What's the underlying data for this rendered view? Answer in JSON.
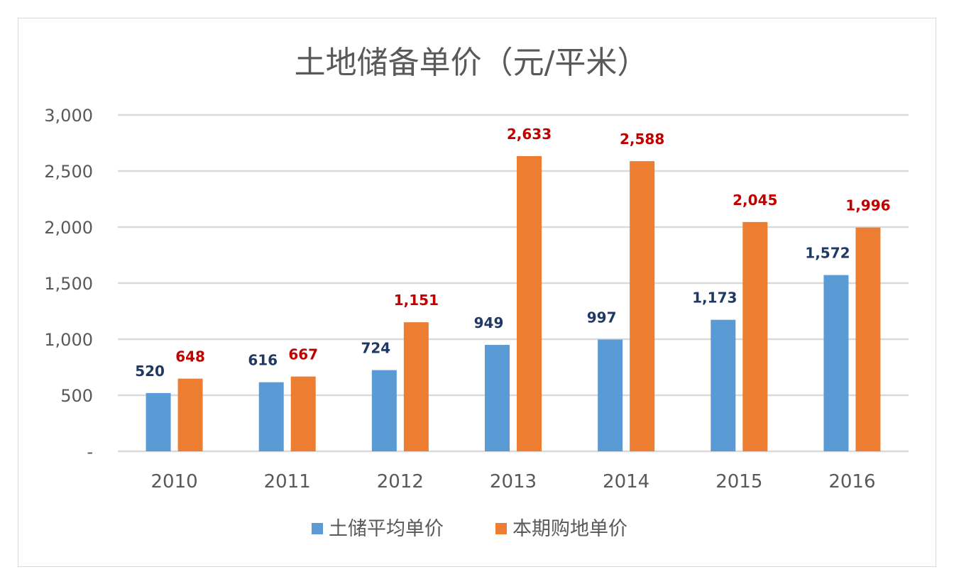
{
  "chart_data": {
    "type": "bar",
    "title": "土地储备单价（元/平米）",
    "categories": [
      "2010",
      "2011",
      "2012",
      "2013",
      "2014",
      "2015",
      "2016"
    ],
    "series": [
      {
        "name": "土储平均单价",
        "values": [
          520,
          616,
          724,
          949,
          997,
          1173,
          1572
        ],
        "color": "#5b9bd5",
        "label_color": "#1f3864",
        "labels": [
          "520",
          "616",
          "724",
          "949",
          "997",
          "1,173",
          "1,572"
        ]
      },
      {
        "name": "本期购地单价",
        "values": [
          648,
          667,
          1151,
          2633,
          2588,
          2045,
          1996
        ],
        "color": "#ed7d31",
        "label_color": "#c00000",
        "labels": [
          "648",
          "667",
          "1,151",
          "2,633",
          "2,588",
          "2,045",
          "1,996"
        ]
      }
    ],
    "ylim": [
      0,
      3000
    ],
    "yticks": [
      0,
      500,
      1000,
      1500,
      2000,
      2500,
      3000
    ],
    "ytick_labels": [
      "-",
      "500",
      "1,000",
      "1,500",
      "2,000",
      "2,500",
      "3,000"
    ],
    "xlabel": "",
    "ylabel": "",
    "grid": true,
    "legend": "bottom",
    "gridline_color": "#d9d9d9"
  }
}
